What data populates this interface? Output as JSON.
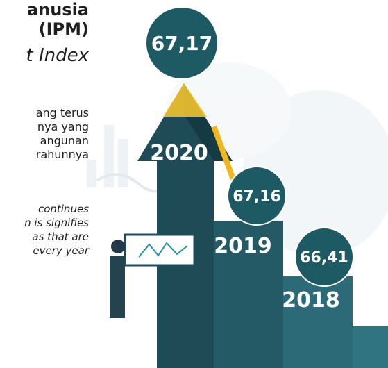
{
  "heading": {
    "title_lines": [
      "anusia",
      "(IPM)"
    ],
    "subtitle": "t Index"
  },
  "paragraph_id": [
    "ang terus",
    "nya yang",
    "angunan",
    "rahunnya"
  ],
  "paragraph_en": [
    "continues",
    "n is signifies",
    "as that are",
    "every year"
  ],
  "milestones": [
    {
      "year": "2020",
      "value": "67,17"
    },
    {
      "year": "2019",
      "value": "67,16"
    },
    {
      "year": "2018",
      "value": "66,41"
    }
  ]
}
